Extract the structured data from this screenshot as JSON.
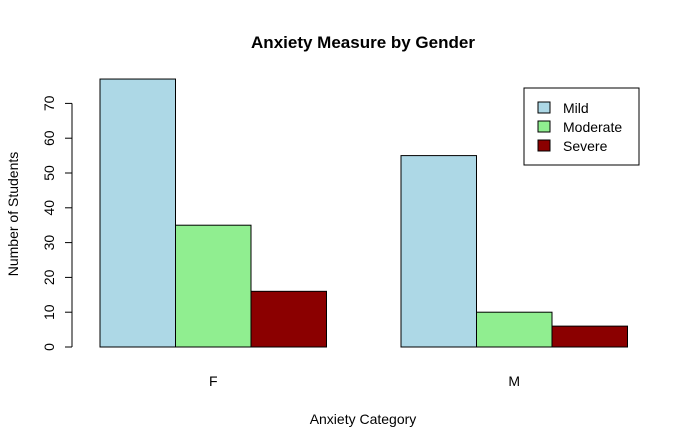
{
  "chart_data": {
    "type": "bar",
    "title": "Anxiety Measure by Gender",
    "xlabel": "Anxiety Category",
    "ylabel": "Number of Students",
    "categories": [
      "F",
      "M"
    ],
    "series": [
      {
        "name": "Mild",
        "color": "#add8e6",
        "values": [
          77,
          55
        ]
      },
      {
        "name": "Moderate",
        "color": "#90ee90",
        "values": [
          35,
          10
        ]
      },
      {
        "name": "Severe",
        "color": "#8b0000",
        "values": [
          16,
          6
        ]
      }
    ],
    "yticks": [
      0,
      10,
      20,
      30,
      40,
      50,
      60,
      70
    ],
    "ylim": [
      0,
      77
    ],
    "legend_position": "top-right",
    "grid": false
  }
}
